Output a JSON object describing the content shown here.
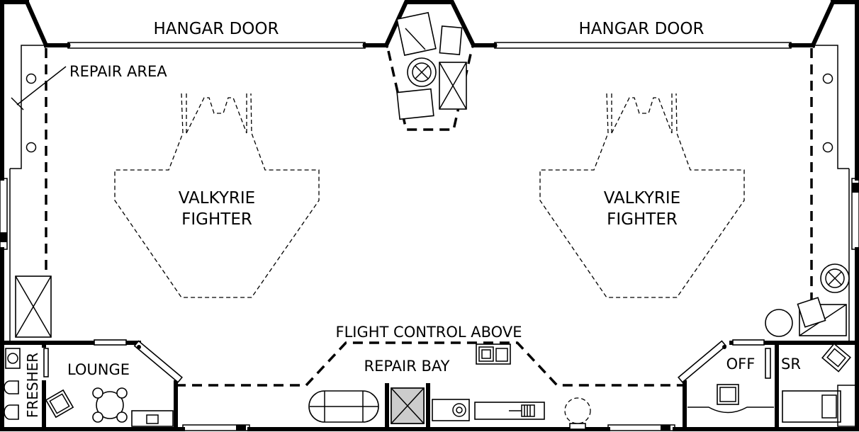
{
  "labels": {
    "hangar_door_left": "HANGAR DOOR",
    "hangar_door_right": "HANGAR DOOR",
    "repair_area": "REPAIR AREA",
    "fighter_left_line1": "VALKYRIE",
    "fighter_left_line2": "FIGHTER",
    "fighter_right_line1": "VALKYRIE",
    "fighter_right_line2": "FIGHTER",
    "flight_control": "FLIGHT CONTROL ABOVE",
    "repair_bay": "REPAIR BAY",
    "lounge": "LOUNGE",
    "fresher": "FRESHER",
    "office": "OFF",
    "storeroom": "SR"
  }
}
